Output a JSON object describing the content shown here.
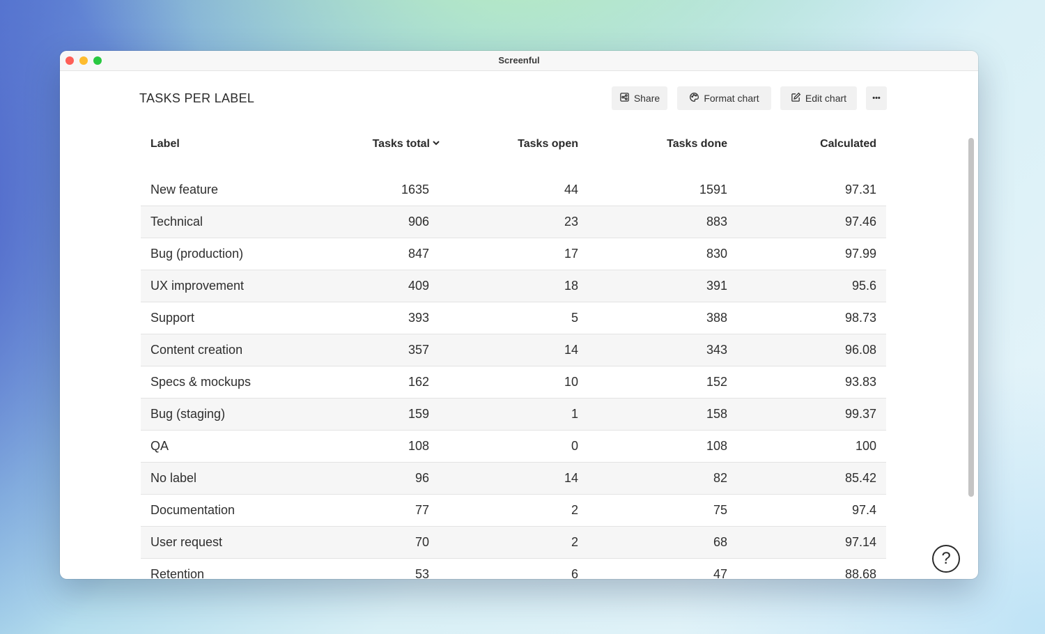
{
  "window": {
    "title": "Screenful"
  },
  "chart": {
    "title": "TASKS PER LABEL"
  },
  "toolbar": {
    "share_label": "Share",
    "format_label": "Format chart",
    "edit_label": "Edit chart",
    "more_label": "•••"
  },
  "help": {
    "label": "?"
  },
  "chart_data": {
    "type": "table",
    "columns": [
      "Label",
      "Tasks total",
      "Tasks open",
      "Tasks done",
      "Calculated"
    ],
    "sort": {
      "column": "Tasks total",
      "direction": "descending"
    },
    "rows": [
      [
        "New feature",
        "1635",
        "44",
        "1591",
        "97.31"
      ],
      [
        "Technical",
        "906",
        "23",
        "883",
        "97.46"
      ],
      [
        "Bug (production)",
        "847",
        "17",
        "830",
        "97.99"
      ],
      [
        "UX improvement",
        "409",
        "18",
        "391",
        "95.6"
      ],
      [
        "Support",
        "393",
        "5",
        "388",
        "98.73"
      ],
      [
        "Content creation",
        "357",
        "14",
        "343",
        "96.08"
      ],
      [
        "Specs & mockups",
        "162",
        "10",
        "152",
        "93.83"
      ],
      [
        "Bug (staging)",
        "159",
        "1",
        "158",
        "99.37"
      ],
      [
        "QA",
        "108",
        "0",
        "108",
        "100"
      ],
      [
        "No label",
        "96",
        "14",
        "82",
        "85.42"
      ],
      [
        "Documentation",
        "77",
        "2",
        "75",
        "97.4"
      ],
      [
        "User request",
        "70",
        "2",
        "68",
        "97.14"
      ],
      [
        "Retention",
        "53",
        "6",
        "47",
        "88.68"
      ]
    ]
  }
}
